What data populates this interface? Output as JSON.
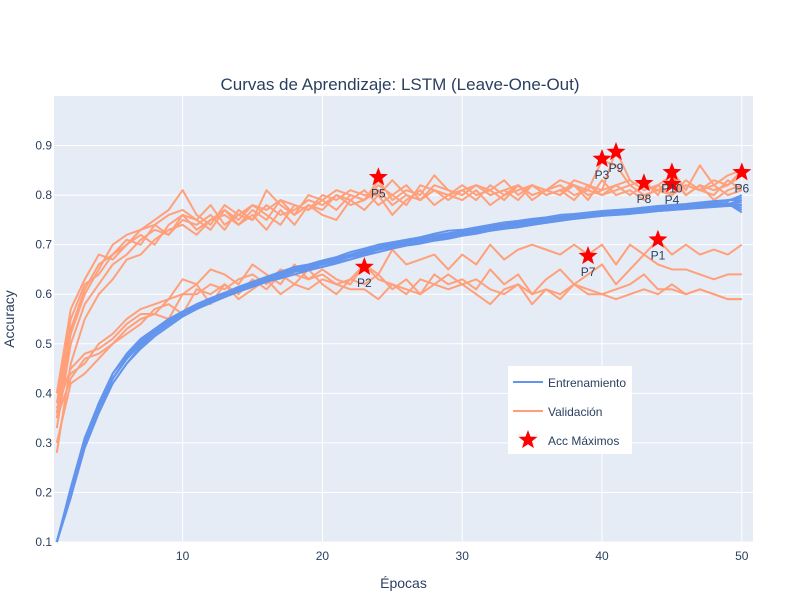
{
  "chart_data": {
    "type": "line",
    "title": "Curvas de Aprendizaje: LSTM (Leave-One-Out)",
    "xlabel": "Épocas",
    "ylabel": "Accuracy",
    "xlim": [
      0.8,
      50.8
    ],
    "ylim": [
      0.1,
      1.0
    ],
    "x_ticks": [
      10,
      20,
      30,
      40,
      50
    ],
    "y_ticks": [
      0.1,
      0.2,
      0.3,
      0.4,
      0.5,
      0.6,
      0.7,
      0.8,
      0.9
    ],
    "grid": true,
    "legend_position": "lower-right",
    "legend": [
      {
        "label": "Entrenamiento",
        "kind": "line",
        "color": "#6495ED"
      },
      {
        "label": "Validación",
        "kind": "line",
        "color": "#FFA07A"
      },
      {
        "label": "Acc Máximos",
        "kind": "star",
        "color": "#FF0000"
      }
    ],
    "colors": {
      "train": "#6495ED",
      "validation": "#FFA07A",
      "max": "#FF0000",
      "plot_bg": "#E5ECF6",
      "grid": "#FFFFFF",
      "text": "#2a3f5f"
    },
    "x": [
      1,
      2,
      3,
      4,
      5,
      6,
      7,
      8,
      9,
      10,
      11,
      12,
      13,
      14,
      15,
      16,
      17,
      18,
      19,
      20,
      21,
      22,
      23,
      24,
      25,
      26,
      27,
      28,
      29,
      30,
      31,
      32,
      33,
      34,
      35,
      36,
      37,
      38,
      39,
      40,
      41,
      42,
      43,
      44,
      45,
      46,
      47,
      48,
      49,
      50
    ],
    "train_series": [
      {
        "values": [
          0.1,
          0.2,
          0.3,
          0.37,
          0.43,
          0.47,
          0.5,
          0.525,
          0.545,
          0.56,
          0.575,
          0.59,
          0.6,
          0.61,
          0.62,
          0.63,
          0.64,
          0.65,
          0.655,
          0.66,
          0.67,
          0.68,
          0.685,
          0.69,
          0.7,
          0.705,
          0.71,
          0.715,
          0.72,
          0.725,
          0.73,
          0.735,
          0.74,
          0.74,
          0.745,
          0.75,
          0.755,
          0.76,
          0.76,
          0.765,
          0.77,
          0.77,
          0.775,
          0.775,
          0.78,
          0.78,
          0.78,
          0.785,
          0.79,
          0.79
        ]
      },
      {
        "values": [
          0.1,
          0.19,
          0.29,
          0.36,
          0.42,
          0.46,
          0.49,
          0.515,
          0.535,
          0.555,
          0.57,
          0.585,
          0.595,
          0.605,
          0.615,
          0.625,
          0.635,
          0.645,
          0.65,
          0.655,
          0.665,
          0.67,
          0.68,
          0.69,
          0.695,
          0.7,
          0.705,
          0.71,
          0.715,
          0.72,
          0.725,
          0.728,
          0.732,
          0.735,
          0.74,
          0.745,
          0.75,
          0.752,
          0.755,
          0.76,
          0.762,
          0.765,
          0.768,
          0.77,
          0.772,
          0.775,
          0.778,
          0.78,
          0.782,
          0.785
        ]
      },
      {
        "values": [
          0.1,
          0.21,
          0.31,
          0.38,
          0.44,
          0.48,
          0.51,
          0.53,
          0.55,
          0.565,
          0.58,
          0.592,
          0.603,
          0.615,
          0.625,
          0.635,
          0.645,
          0.655,
          0.66,
          0.668,
          0.675,
          0.685,
          0.692,
          0.7,
          0.705,
          0.71,
          0.715,
          0.722,
          0.728,
          0.73,
          0.735,
          0.74,
          0.745,
          0.748,
          0.752,
          0.755,
          0.76,
          0.762,
          0.765,
          0.768,
          0.77,
          0.772,
          0.775,
          0.778,
          0.78,
          0.782,
          0.785,
          0.788,
          0.79,
          0.795
        ]
      },
      {
        "values": [
          0.1,
          0.2,
          0.3,
          0.37,
          0.43,
          0.47,
          0.5,
          0.52,
          0.54,
          0.558,
          0.572,
          0.585,
          0.597,
          0.608,
          0.618,
          0.628,
          0.64,
          0.648,
          0.655,
          0.662,
          0.67,
          0.678,
          0.685,
          0.692,
          0.698,
          0.703,
          0.708,
          0.713,
          0.718,
          0.722,
          0.726,
          0.73,
          0.735,
          0.74,
          0.742,
          0.746,
          0.75,
          0.755,
          0.758,
          0.76,
          0.76,
          0.762,
          0.765,
          0.768,
          0.77,
          0.773,
          0.775,
          0.778,
          0.78,
          0.78
        ]
      },
      {
        "values": [
          0.1,
          0.19,
          0.3,
          0.37,
          0.42,
          0.46,
          0.495,
          0.52,
          0.54,
          0.555,
          0.57,
          0.582,
          0.594,
          0.605,
          0.615,
          0.625,
          0.632,
          0.64,
          0.648,
          0.655,
          0.662,
          0.67,
          0.678,
          0.685,
          0.692,
          0.698,
          0.702,
          0.708,
          0.712,
          0.718,
          0.722,
          0.728,
          0.732,
          0.736,
          0.74,
          0.744,
          0.748,
          0.752,
          0.755,
          0.758,
          0.76,
          0.763,
          0.765,
          0.768,
          0.77,
          0.772,
          0.774,
          0.776,
          0.778,
          0.78
        ]
      },
      {
        "values": [
          0.1,
          0.2,
          0.3,
          0.38,
          0.44,
          0.475,
          0.505,
          0.528,
          0.548,
          0.562,
          0.576,
          0.588,
          0.6,
          0.612,
          0.622,
          0.632,
          0.642,
          0.652,
          0.658,
          0.665,
          0.672,
          0.68,
          0.688,
          0.695,
          0.7,
          0.706,
          0.712,
          0.718,
          0.722,
          0.728,
          0.732,
          0.737,
          0.741,
          0.745,
          0.749,
          0.752,
          0.756,
          0.76,
          0.763,
          0.766,
          0.768,
          0.771,
          0.774,
          0.776,
          0.779,
          0.781,
          0.783,
          0.786,
          0.788,
          0.8
        ]
      },
      {
        "values": [
          0.1,
          0.2,
          0.31,
          0.37,
          0.43,
          0.47,
          0.5,
          0.525,
          0.544,
          0.56,
          0.574,
          0.587,
          0.598,
          0.61,
          0.62,
          0.63,
          0.638,
          0.646,
          0.652,
          0.66,
          0.668,
          0.675,
          0.682,
          0.69,
          0.697,
          0.702,
          0.708,
          0.714,
          0.719,
          0.724,
          0.728,
          0.733,
          0.738,
          0.742,
          0.746,
          0.75,
          0.752,
          0.755,
          0.758,
          0.761,
          0.764,
          0.766,
          0.768,
          0.77,
          0.772,
          0.774,
          0.776,
          0.778,
          0.779,
          0.775
        ]
      },
      {
        "values": [
          0.1,
          0.2,
          0.3,
          0.37,
          0.43,
          0.47,
          0.5,
          0.522,
          0.542,
          0.558,
          0.573,
          0.586,
          0.598,
          0.609,
          0.62,
          0.63,
          0.64,
          0.65,
          0.656,
          0.664,
          0.672,
          0.68,
          0.688,
          0.696,
          0.702,
          0.708,
          0.713,
          0.718,
          0.723,
          0.727,
          0.731,
          0.735,
          0.739,
          0.742,
          0.746,
          0.75,
          0.753,
          0.756,
          0.76,
          0.763,
          0.766,
          0.769,
          0.771,
          0.773,
          0.776,
          0.778,
          0.78,
          0.782,
          0.784,
          0.77
        ]
      },
      {
        "values": [
          0.1,
          0.2,
          0.3,
          0.37,
          0.43,
          0.47,
          0.5,
          0.524,
          0.543,
          0.559,
          0.573,
          0.586,
          0.598,
          0.609,
          0.62,
          0.63,
          0.64,
          0.65,
          0.657,
          0.664,
          0.671,
          0.679,
          0.686,
          0.694,
          0.7,
          0.705,
          0.71,
          0.716,
          0.721,
          0.725,
          0.73,
          0.734,
          0.738,
          0.742,
          0.745,
          0.749,
          0.752,
          0.755,
          0.758,
          0.761,
          0.764,
          0.767,
          0.77,
          0.772,
          0.775,
          0.777,
          0.779,
          0.781,
          0.783,
          0.765
        ]
      },
      {
        "values": [
          0.1,
          0.2,
          0.3,
          0.37,
          0.43,
          0.47,
          0.5,
          0.523,
          0.542,
          0.557,
          0.571,
          0.584,
          0.596,
          0.607,
          0.618,
          0.628,
          0.638,
          0.648,
          0.655,
          0.662,
          0.67,
          0.678,
          0.686,
          0.693,
          0.699,
          0.704,
          0.709,
          0.714,
          0.719,
          0.724,
          0.729,
          0.733,
          0.737,
          0.741,
          0.744,
          0.748,
          0.751,
          0.754,
          0.757,
          0.76,
          0.763,
          0.766,
          0.769,
          0.771,
          0.774,
          0.776,
          0.778,
          0.78,
          0.782,
          0.79
        ]
      }
    ],
    "validation_series": [
      {
        "values": [
          0.35,
          0.52,
          0.6,
          0.65,
          0.7,
          0.72,
          0.73,
          0.74,
          0.76,
          0.77,
          0.75,
          0.78,
          0.74,
          0.76,
          0.78,
          0.77,
          0.79,
          0.78,
          0.77,
          0.8,
          0.79,
          0.81,
          0.8,
          0.8,
          0.83,
          0.8,
          0.79,
          0.82,
          0.81,
          0.8,
          0.82,
          0.8,
          0.81,
          0.82,
          0.8,
          0.81,
          0.83,
          0.82,
          0.81,
          0.8,
          0.82,
          0.83,
          0.81,
          0.82,
          0.84,
          0.8,
          0.82,
          0.81,
          0.82,
          0.84
        ]
      },
      {
        "values": [
          0.4,
          0.57,
          0.63,
          0.68,
          0.67,
          0.7,
          0.72,
          0.7,
          0.74,
          0.76,
          0.73,
          0.75,
          0.77,
          0.74,
          0.76,
          0.73,
          0.77,
          0.74,
          0.78,
          0.76,
          0.75,
          0.79,
          0.77,
          0.8,
          0.76,
          0.79,
          0.81,
          0.78,
          0.8,
          0.79,
          0.81,
          0.78,
          0.8,
          0.82,
          0.79,
          0.81,
          0.8,
          0.82,
          0.79,
          0.83,
          0.8,
          0.81,
          0.79,
          0.82,
          0.8,
          0.82,
          0.81,
          0.8,
          0.83,
          0.81
        ]
      },
      {
        "values": [
          0.33,
          0.5,
          0.58,
          0.62,
          0.66,
          0.68,
          0.71,
          0.73,
          0.72,
          0.75,
          0.74,
          0.76,
          0.73,
          0.77,
          0.75,
          0.78,
          0.76,
          0.77,
          0.79,
          0.78,
          0.8,
          0.79,
          0.81,
          0.78,
          0.8,
          0.82,
          0.79,
          0.81,
          0.8,
          0.82,
          0.8,
          0.81,
          0.79,
          0.82,
          0.8,
          0.81,
          0.82,
          0.8,
          0.81,
          0.87,
          0.86,
          0.82,
          0.8,
          0.81,
          0.83,
          0.8,
          0.82,
          0.79,
          0.81,
          0.82
        ]
      },
      {
        "values": [
          0.38,
          0.55,
          0.62,
          0.64,
          0.68,
          0.71,
          0.7,
          0.74,
          0.72,
          0.76,
          0.75,
          0.73,
          0.77,
          0.75,
          0.78,
          0.76,
          0.74,
          0.78,
          0.77,
          0.79,
          0.77,
          0.8,
          0.79,
          0.83,
          0.79,
          0.81,
          0.8,
          0.84,
          0.81,
          0.8,
          0.82,
          0.81,
          0.83,
          0.8,
          0.82,
          0.81,
          0.8,
          0.83,
          0.82,
          0.81,
          0.89,
          0.83,
          0.81,
          0.82,
          0.8,
          0.83,
          0.81,
          0.82,
          0.8,
          0.81
        ]
      },
      {
        "values": [
          0.28,
          0.46,
          0.55,
          0.6,
          0.63,
          0.67,
          0.68,
          0.71,
          0.73,
          0.74,
          0.72,
          0.75,
          0.76,
          0.74,
          0.77,
          0.75,
          0.79,
          0.76,
          0.78,
          0.77,
          0.8,
          0.78,
          0.79,
          0.81,
          0.78,
          0.8,
          0.79,
          0.81,
          0.8,
          0.81,
          0.79,
          0.82,
          0.8,
          0.81,
          0.82,
          0.8,
          0.81,
          0.79,
          0.82,
          0.8,
          0.81,
          0.82,
          0.83,
          0.8,
          0.85,
          0.81,
          0.86,
          0.82,
          0.84,
          0.85
        ]
      },
      {
        "values": [
          0.36,
          0.53,
          0.61,
          0.66,
          0.68,
          0.7,
          0.73,
          0.75,
          0.77,
          0.81,
          0.76,
          0.74,
          0.78,
          0.76,
          0.75,
          0.81,
          0.78,
          0.76,
          0.8,
          0.79,
          0.81,
          0.8,
          0.79,
          0.82,
          0.8,
          0.78,
          0.82,
          0.81,
          0.79,
          0.81,
          0.82,
          0.8,
          0.81,
          0.79,
          0.82,
          0.8,
          0.81,
          0.82,
          0.8,
          0.81,
          0.82,
          0.8,
          0.82,
          0.81,
          0.8,
          0.82,
          0.81,
          0.83,
          0.82,
          0.85
        ]
      },
      {
        "values": [
          0.4,
          0.44,
          0.46,
          0.5,
          0.52,
          0.55,
          0.57,
          0.58,
          0.59,
          0.63,
          0.62,
          0.65,
          0.64,
          0.62,
          0.66,
          0.64,
          0.62,
          0.66,
          0.63,
          0.64,
          0.62,
          0.63,
          0.66,
          0.64,
          0.69,
          0.66,
          0.67,
          0.68,
          0.65,
          0.68,
          0.66,
          0.7,
          0.67,
          0.69,
          0.7,
          0.69,
          0.68,
          0.7,
          0.68,
          0.7,
          0.66,
          0.7,
          0.68,
          0.71,
          0.68,
          0.7,
          0.68,
          0.69,
          0.68,
          0.7
        ]
      },
      {
        "values": [
          0.35,
          0.43,
          0.47,
          0.48,
          0.5,
          0.53,
          0.55,
          0.56,
          0.55,
          0.6,
          0.62,
          0.58,
          0.62,
          0.6,
          0.63,
          0.61,
          0.64,
          0.62,
          0.65,
          0.62,
          0.6,
          0.63,
          0.62,
          0.64,
          0.61,
          0.63,
          0.6,
          0.64,
          0.62,
          0.63,
          0.61,
          0.65,
          0.62,
          0.64,
          0.6,
          0.63,
          0.65,
          0.62,
          0.64,
          0.66,
          0.62,
          0.65,
          0.68,
          0.66,
          0.65,
          0.65,
          0.64,
          0.63,
          0.64,
          0.64
        ]
      },
      {
        "values": [
          0.3,
          0.42,
          0.44,
          0.47,
          0.5,
          0.52,
          0.54,
          0.57,
          0.58,
          0.56,
          0.61,
          0.6,
          0.62,
          0.59,
          0.61,
          0.63,
          0.6,
          0.62,
          0.61,
          0.63,
          0.62,
          0.61,
          0.61,
          0.59,
          0.62,
          0.61,
          0.6,
          0.62,
          0.61,
          0.62,
          0.6,
          0.58,
          0.61,
          0.62,
          0.6,
          0.61,
          0.59,
          0.62,
          0.6,
          0.6,
          0.61,
          0.62,
          0.64,
          0.61,
          0.61,
          0.6,
          0.61,
          0.6,
          0.59,
          0.59
        ]
      },
      {
        "values": [
          0.37,
          0.45,
          0.48,
          0.49,
          0.51,
          0.54,
          0.56,
          0.56,
          0.59,
          0.6,
          0.6,
          0.62,
          0.61,
          0.63,
          0.64,
          0.62,
          0.65,
          0.64,
          0.63,
          0.65,
          0.63,
          0.62,
          0.66,
          0.63,
          0.62,
          0.6,
          0.63,
          0.62,
          0.64,
          0.62,
          0.63,
          0.61,
          0.6,
          0.62,
          0.58,
          0.61,
          0.6,
          0.62,
          0.61,
          0.6,
          0.59,
          0.6,
          0.61,
          0.6,
          0.62,
          0.6,
          0.61,
          0.6,
          0.59,
          0.59
        ]
      }
    ],
    "max_points": [
      {
        "label": "P1",
        "x": 44,
        "y": 0.71
      },
      {
        "label": "P2",
        "x": 23,
        "y": 0.655
      },
      {
        "label": "P3",
        "x": 40,
        "y": 0.873
      },
      {
        "label": "P4",
        "x": 45,
        "y": 0.822
      },
      {
        "label": "P5",
        "x": 24,
        "y": 0.836
      },
      {
        "label": "P6",
        "x": 50,
        "y": 0.846
      },
      {
        "label": "P7",
        "x": 39,
        "y": 0.677
      },
      {
        "label": "P8",
        "x": 43,
        "y": 0.824
      },
      {
        "label": "P9",
        "x": 41,
        "y": 0.887
      },
      {
        "label": "P10",
        "x": 45,
        "y": 0.846
      }
    ]
  }
}
